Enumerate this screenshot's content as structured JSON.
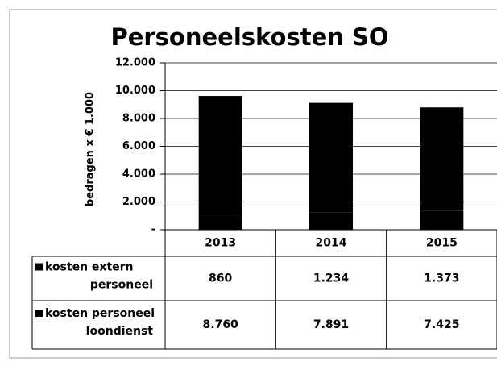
{
  "chart_data": {
    "type": "bar",
    "stacked": true,
    "title": "Personeelskosten SO",
    "y_label": "bedragen x € 1.000",
    "categories": [
      "2013",
      "2014",
      "2015"
    ],
    "series": [
      {
        "name": "kosten extern personeel",
        "color": "#000000",
        "values": [
          860,
          1234,
          1373
        ],
        "value_labels": [
          "860",
          "1.234",
          "1.373"
        ]
      },
      {
        "name": "kosten personeel loondienst",
        "color": "#000000",
        "values": [
          8760,
          7891,
          7425
        ],
        "value_labels": [
          "8.760",
          "7.891",
          "7.425"
        ]
      }
    ],
    "ylim": [
      0,
      12000
    ],
    "yticks": [
      {
        "value": 0,
        "label": "-"
      },
      {
        "value": 2000,
        "label": "2.000"
      },
      {
        "value": 4000,
        "label": "4.000"
      },
      {
        "value": 6000,
        "label": "6.000"
      },
      {
        "value": 8000,
        "label": "8.000"
      },
      {
        "value": 10000,
        "label": "10.000"
      },
      {
        "value": 12000,
        "label": "12.000"
      }
    ],
    "grid": true
  }
}
